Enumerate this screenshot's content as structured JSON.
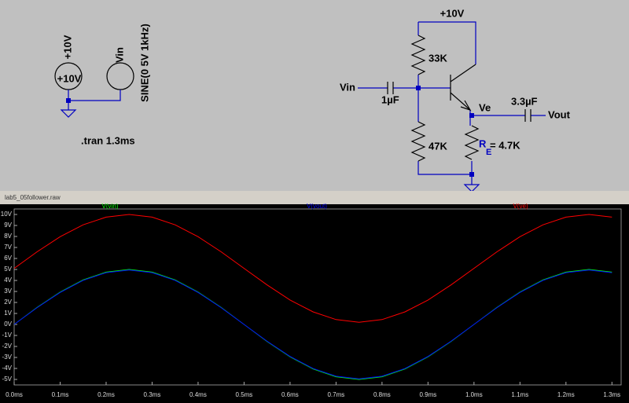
{
  "schematic": {
    "supply_rotated": "+10V",
    "supply_label": "+10V",
    "source_rotated": "Vin",
    "source_spec": "SINE(0 5V 1kHz)",
    "directive": ".tran 1.3ms",
    "vcc": "+10V",
    "r1": "33K",
    "input": "Vin",
    "c1": "1µF",
    "r2": "47K",
    "emitter": "Ve",
    "c2": "3.3µF",
    "output": "Vout",
    "re_name": "R",
    "re_sub": "E",
    "re_value": "= 4.7K"
  },
  "window_title": "lab5_05follower.raw",
  "chart_data": {
    "type": "line",
    "x": [
      0,
      0.05,
      0.1,
      0.15,
      0.2,
      0.25,
      0.3,
      0.35,
      0.4,
      0.45,
      0.5,
      0.55,
      0.6,
      0.65,
      0.7,
      0.75,
      0.8,
      0.85,
      0.9,
      0.95,
      1.0,
      1.05,
      1.1,
      1.15,
      1.2,
      1.25,
      1.3
    ],
    "series": [
      {
        "name": "V(vin)",
        "color": "#00ff00",
        "values": [
          0,
          1.55,
          2.94,
          4.05,
          4.76,
          5,
          4.76,
          4.05,
          2.94,
          1.55,
          0,
          -1.55,
          -2.94,
          -4.05,
          -4.76,
          -5,
          -4.76,
          -4.05,
          -2.94,
          -1.55,
          0,
          1.55,
          2.94,
          4.05,
          4.76,
          5,
          4.76
        ]
      },
      {
        "name": "V(vout)",
        "color": "#0000ff",
        "values": [
          0,
          1.53,
          2.91,
          4.01,
          4.71,
          4.95,
          4.71,
          4.01,
          2.91,
          1.53,
          0,
          -1.53,
          -2.91,
          -4.01,
          -4.71,
          -4.95,
          -4.71,
          -4.01,
          -2.91,
          -1.53,
          0,
          1.53,
          2.91,
          4.01,
          4.71,
          4.95,
          4.71
        ]
      },
      {
        "name": "V(ve)",
        "color": "#ff0000",
        "values": [
          5.1,
          6.61,
          7.98,
          9.06,
          9.76,
          10,
          9.76,
          9.06,
          7.98,
          6.61,
          5.1,
          3.59,
          2.22,
          1.14,
          0.44,
          0.2,
          0.44,
          1.14,
          2.22,
          3.59,
          5.1,
          6.61,
          7.98,
          9.06,
          9.76,
          10,
          9.76
        ]
      }
    ],
    "xlim": [
      0,
      1.32
    ],
    "ylim": [
      -5.5,
      10.5
    ],
    "xticks": [
      {
        "value": 0,
        "label": "0.0ms"
      },
      {
        "value": 0.1,
        "label": "0.1ms"
      },
      {
        "value": 0.2,
        "label": "0.2ms"
      },
      {
        "value": 0.3,
        "label": "0.3ms"
      },
      {
        "value": 0.4,
        "label": "0.4ms"
      },
      {
        "value": 0.5,
        "label": "0.5ms"
      },
      {
        "value": 0.6,
        "label": "0.6ms"
      },
      {
        "value": 0.7,
        "label": "0.7ms"
      },
      {
        "value": 0.8,
        "label": "0.8ms"
      },
      {
        "value": 0.9,
        "label": "0.9ms"
      },
      {
        "value": 1.0,
        "label": "1.0ms"
      },
      {
        "value": 1.1,
        "label": "1.1ms"
      },
      {
        "value": 1.2,
        "label": "1.2ms"
      },
      {
        "value": 1.3,
        "label": "1.3ms"
      }
    ],
    "yticks": [
      {
        "value": 10,
        "label": "10V"
      },
      {
        "value": 9,
        "label": "9V"
      },
      {
        "value": 8,
        "label": "8V"
      },
      {
        "value": 7,
        "label": "7V"
      },
      {
        "value": 6,
        "label": "6V"
      },
      {
        "value": 5,
        "label": "5V"
      },
      {
        "value": 4,
        "label": "4V"
      },
      {
        "value": 3,
        "label": "3V"
      },
      {
        "value": 2,
        "label": "2V"
      },
      {
        "value": 1,
        "label": "1V"
      },
      {
        "value": 0,
        "label": "0V"
      },
      {
        "value": -1,
        "label": "-1V"
      },
      {
        "value": -2,
        "label": "-2V"
      },
      {
        "value": -3,
        "label": "-3V"
      },
      {
        "value": -4,
        "label": "-4V"
      },
      {
        "value": -5,
        "label": "-5V"
      }
    ]
  }
}
